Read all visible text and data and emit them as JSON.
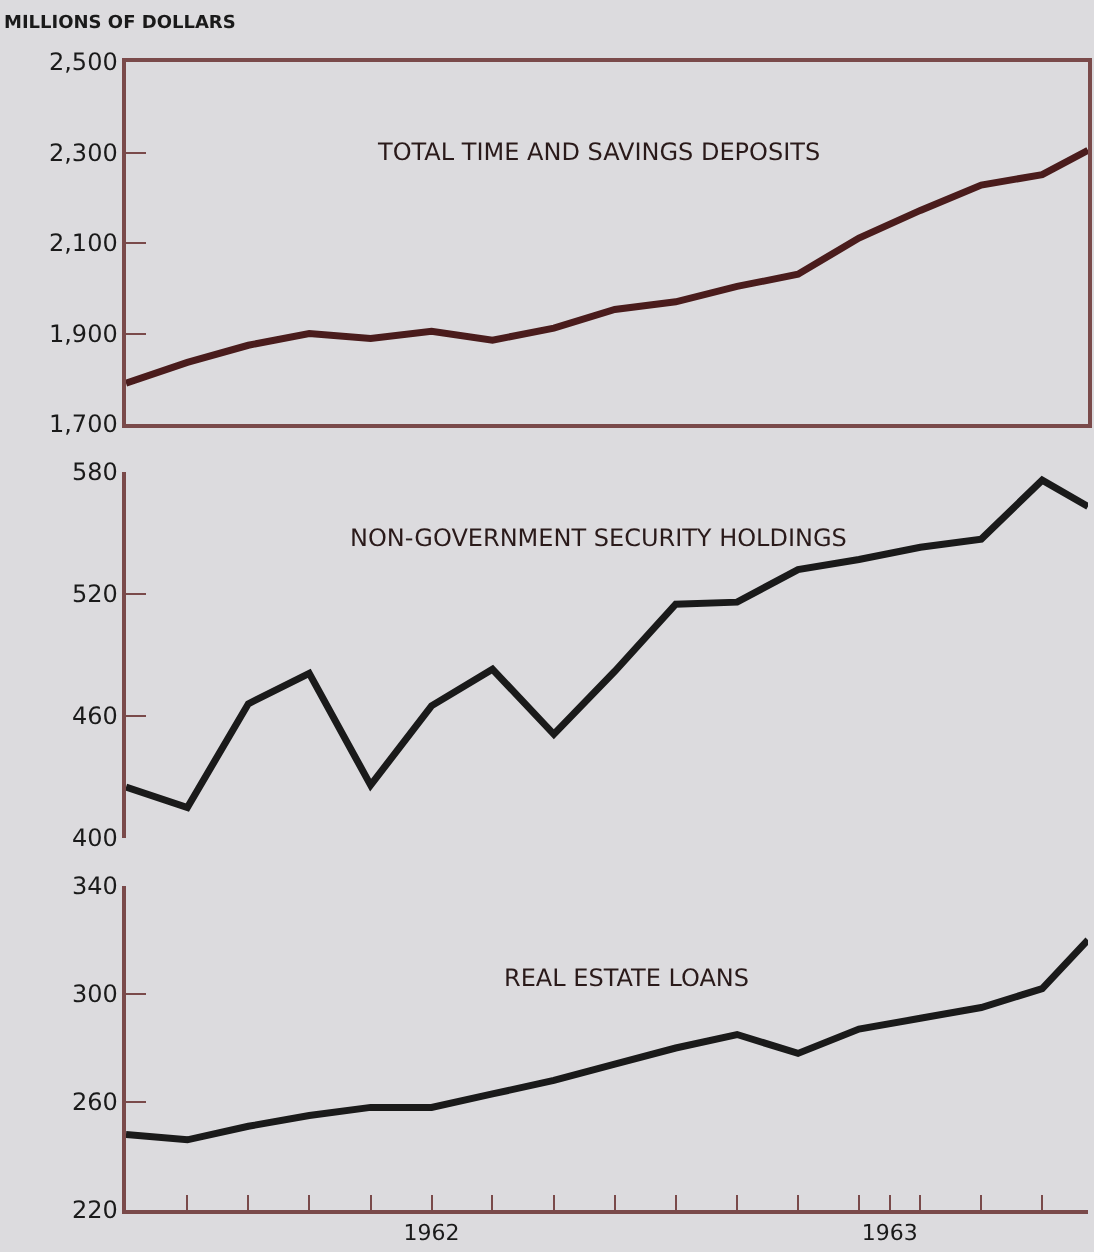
{
  "chart_data": [
    {
      "type": "line",
      "title": "TOTAL TIME AND SAVINGS DEPOSITS",
      "ylabel": "MILLIONS OF DOLLARS",
      "x": [
        1961.333,
        1961.467,
        1961.6,
        1961.733,
        1961.867,
        1962,
        1962.133,
        1962.267,
        1962.4,
        1962.533,
        1962.667,
        1962.8,
        1962.933,
        1963.067,
        1963.2,
        1963.333,
        1963.433
      ],
      "xlim": [
        1961.333,
        1963.433
      ],
      "ylim": [
        1700,
        2500
      ],
      "yticks": [
        {
          "value": 1700,
          "label": "1,700"
        },
        {
          "value": 1900,
          "label": "1,900"
        },
        {
          "value": 2100,
          "label": "2,100"
        },
        {
          "value": 2300,
          "label": "2,300"
        },
        {
          "value": 2500,
          "label": "2,500"
        }
      ],
      "tick_labels": "y",
      "grid": false,
      "series": [
        {
          "color": "#4a1c1c",
          "values": [
            1790,
            1836,
            1874,
            1900,
            1889,
            1905,
            1885,
            1912,
            1953,
            1970,
            2004,
            2031,
            2111,
            2172,
            2228,
            2251,
            2305
          ]
        }
      ]
    },
    {
      "type": "line",
      "title": "NON-GOVERNMENT SECURITY HOLDINGS",
      "x": [
        1961.333,
        1961.467,
        1961.6,
        1961.733,
        1961.867,
        1962,
        1962.133,
        1962.267,
        1962.4,
        1962.533,
        1962.667,
        1962.8,
        1962.933,
        1963.067,
        1963.2,
        1963.333,
        1963.433
      ],
      "xlim": [
        1961.333,
        1963.433
      ],
      "ylim": [
        400,
        580
      ],
      "yticks": [
        400,
        460,
        520,
        580
      ],
      "tick_labels": "y",
      "grid": false,
      "series": [
        {
          "color": "#1a1a1a",
          "values": [
            425,
            415,
            466,
            481,
            426,
            465,
            483,
            451,
            482,
            515,
            516,
            532,
            537,
            543,
            547,
            576,
            563
          ]
        }
      ]
    },
    {
      "type": "line",
      "title": "REAL ESTATE LOANS",
      "x": [
        1961.333,
        1961.467,
        1961.6,
        1961.733,
        1961.867,
        1962,
        1962.133,
        1962.267,
        1962.4,
        1962.533,
        1962.667,
        1962.8,
        1962.933,
        1963.067,
        1963.2,
        1963.333,
        1963.433
      ],
      "xlim": [
        1961.333,
        1963.433
      ],
      "ylim": [
        220,
        340
      ],
      "yticks": [
        220,
        260,
        300,
        340
      ],
      "xticks": [
        {
          "value": 1961.333,
          "label": null
        },
        {
          "value": 1961.467,
          "label": null
        },
        {
          "value": 1961.6,
          "label": null
        },
        {
          "value": 1961.733,
          "label": null
        },
        {
          "value": 1961.867,
          "label": null
        },
        1962,
        {
          "value": 1962.133,
          "label": null
        },
        {
          "value": 1962.267,
          "label": null
        },
        {
          "value": 1962.4,
          "label": null
        },
        {
          "value": 1962.533,
          "label": null
        },
        {
          "value": 1962.667,
          "label": null
        },
        {
          "value": 1962.8,
          "label": null
        },
        {
          "value": 1962.933,
          "label": null
        },
        1963,
        {
          "value": 1963.067,
          "label": null
        },
        {
          "value": 1963.2,
          "label": null
        },
        {
          "value": 1963.333,
          "label": null
        }
      ],
      "grid": false,
      "series": [
        {
          "color": "#1a1a1a",
          "values": [
            248,
            246,
            251,
            255,
            258,
            258,
            263,
            268,
            274,
            280,
            285,
            278,
            287,
            291,
            295,
            302,
            320
          ]
        }
      ]
    }
  ]
}
